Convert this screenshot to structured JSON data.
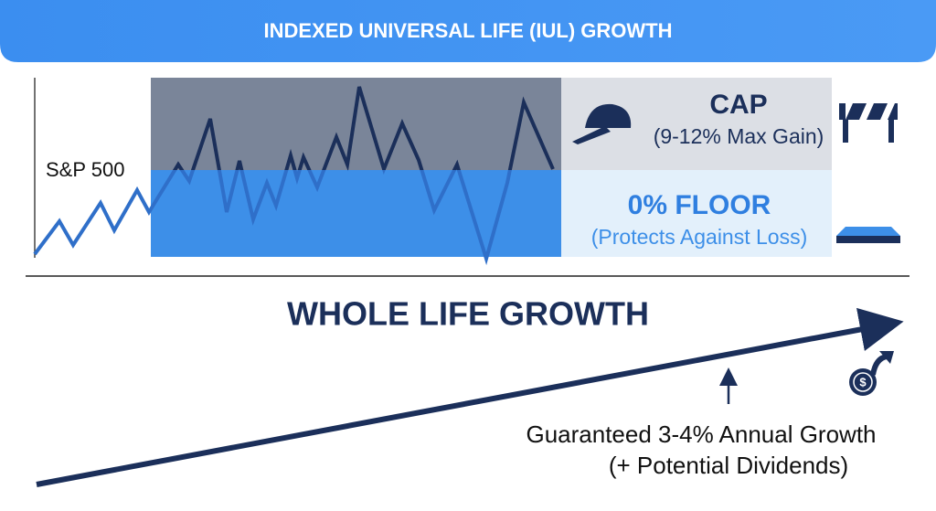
{
  "header": {
    "title": "INDEXED UNIVERSAL LIFE (IUL) GROWTH"
  },
  "iul": {
    "index_label": "S&P 500",
    "cap": {
      "title": "CAP",
      "note": "(9-12% Max Gain)"
    },
    "floor": {
      "title": "0% FLOOR",
      "note": "(Protects Against Loss)"
    }
  },
  "whole_life": {
    "title": "WHOLE LIFE GROWTH",
    "note_line1": "Guaranteed 3-4% Annual Growth",
    "note_line2": "(+ Potential Dividends)"
  }
}
